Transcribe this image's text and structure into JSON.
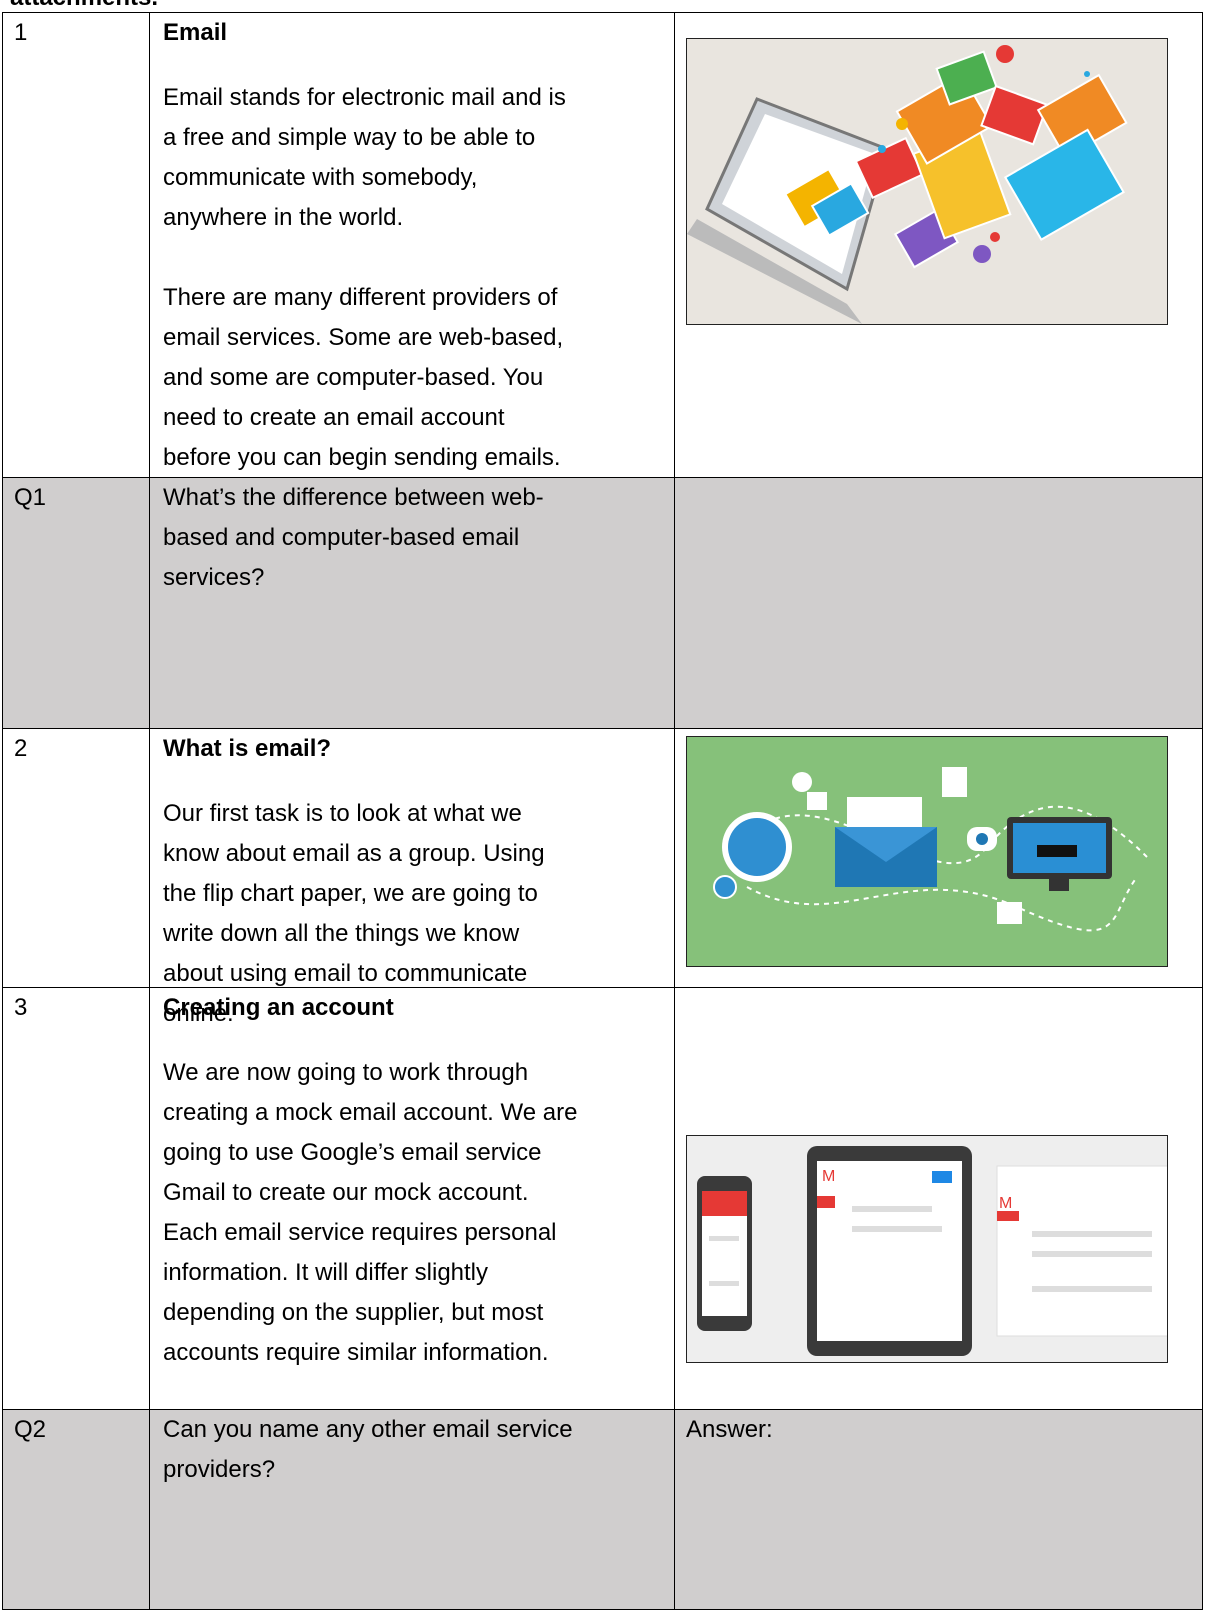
{
  "header": {
    "title": "attachments."
  },
  "table": {
    "rows": [
      {
        "label": "1",
        "heading": "Email",
        "paragraphs": [
          [
            "Email stands for electronic mail and is",
            "a free and simple way to be able to",
            "communicate with somebody,",
            "anywhere in the world."
          ],
          [
            "There are many different providers of",
            "email services. Some are web-based,",
            "and some are computer-based. You",
            "need to create an email account",
            "before you can begin sending emails."
          ]
        ]
      },
      {
        "label": "Q1",
        "paragraphs": [
          [
            "What’s the difference between web-",
            "based and computer-based email",
            "services?"
          ]
        ]
      },
      {
        "label": "2",
        "heading": "What is email?",
        "paragraphs": [
          [
            "Our first task is to look at what we",
            "know about email as a group. Using",
            "the flip chart paper, we are going to",
            "write down all the things we know",
            "about using email to communicate",
            "online."
          ]
        ]
      },
      {
        "label": "3",
        "heading": "Creating an account",
        "paragraphs": [
          [
            "We are now going to work through",
            "creating a mock email account. We are",
            "going to use Google’s email service",
            "Gmail to create our mock account.",
            "Each email service requires personal",
            "information. It will differ slightly",
            "depending on the supplier, but most",
            "accounts require similar information."
          ]
        ]
      },
      {
        "label": "Q2",
        "paragraphs": [
          [
            "Can you name any other email service",
            "providers?"
          ]
        ],
        "answer": "Answer:"
      }
    ]
  }
}
